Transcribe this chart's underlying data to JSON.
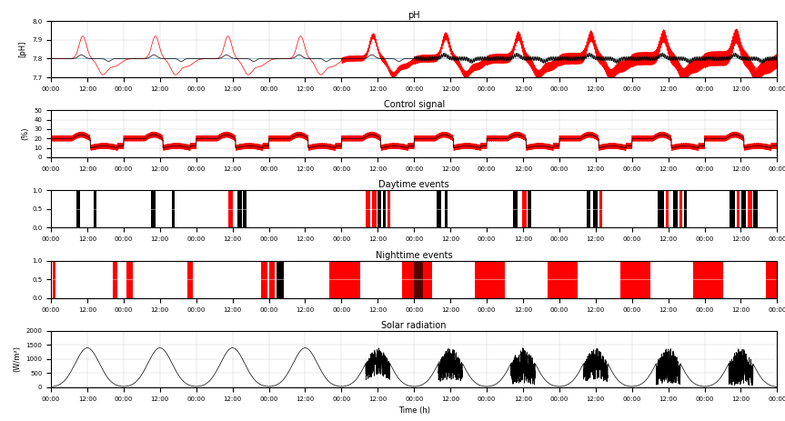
{
  "title_ph": "pH",
  "title_control": "Control signal",
  "title_daytime": "Daytime events",
  "title_nighttime": "Nighttime events",
  "title_solar": "Solar radiation",
  "xlabel": "Time (h)",
  "ylabel_ph": "[pH]",
  "ylabel_control": "(%)",
  "ylabel_solar": "(W/m²)",
  "ph_ylim": [
    7.7,
    8.0
  ],
  "ph_yticks": [
    7.7,
    7.8,
    7.9,
    8.0
  ],
  "control_ylim": [
    0,
    50
  ],
  "control_yticks": [
    0,
    10,
    20,
    30,
    40,
    50
  ],
  "solar_ylim": [
    0,
    2000
  ],
  "solar_yticks": [
    0,
    500,
    1000,
    1500,
    2000
  ],
  "n_days": 10,
  "setpoint_ph": 7.8,
  "background_color": "#ffffff",
  "color_black": "#000000",
  "color_red": "#ff0000",
  "color_cyan": "#88bbdd",
  "tick_label_size": 5,
  "axis_label_size": 6,
  "title_size": 7,
  "linewidth": 0.5
}
